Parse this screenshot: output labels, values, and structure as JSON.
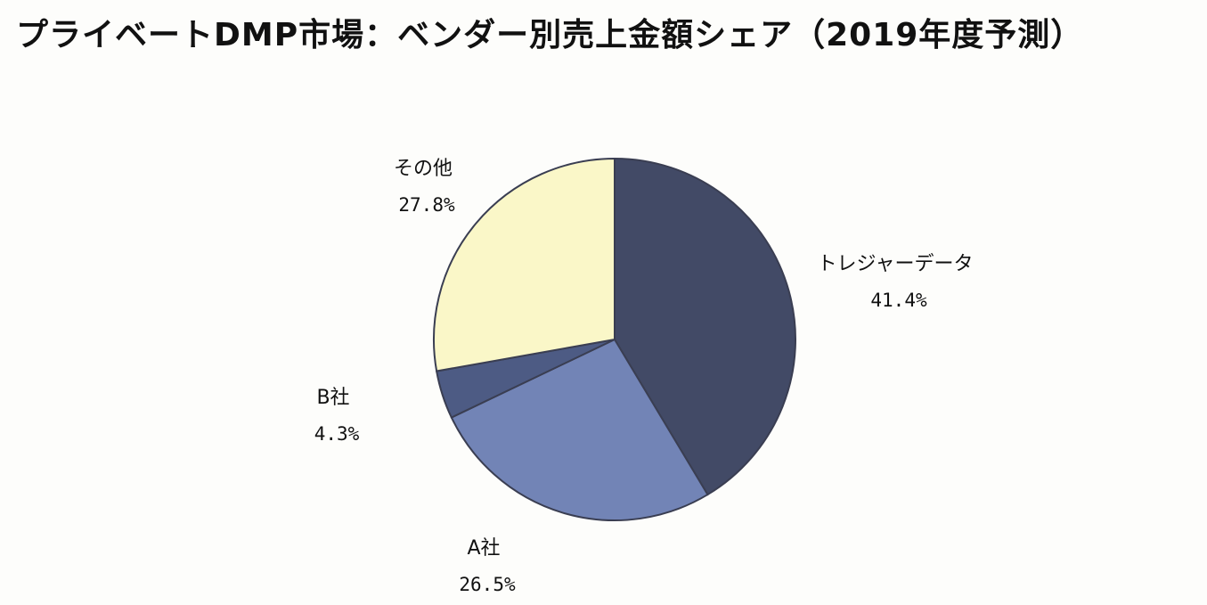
{
  "title": "プライベートDMP市場：ベンダー別売上金額シェア（2019年度予測）",
  "chart_data": {
    "type": "pie",
    "title": "プライベートDMP市場：ベンダー別売上金額シェア（2019年度予測）",
    "slices": [
      {
        "label": "トレジャーデータ",
        "value": 41.4,
        "value_label": "41.4%",
        "color": "#424a66"
      },
      {
        "label": "A社",
        "value": 26.5,
        "value_label": "26.5%",
        "color": "#7284b6"
      },
      {
        "label": "B社",
        "value": 4.3,
        "value_label": "4.3%",
        "color": "#4d5b84"
      },
      {
        "label": "その他",
        "value": 27.8,
        "value_label": "27.8%",
        "color": "#faf7c8"
      }
    ],
    "start_angle": "12 o'clock",
    "direction": "clockwise",
    "legend": "none"
  }
}
